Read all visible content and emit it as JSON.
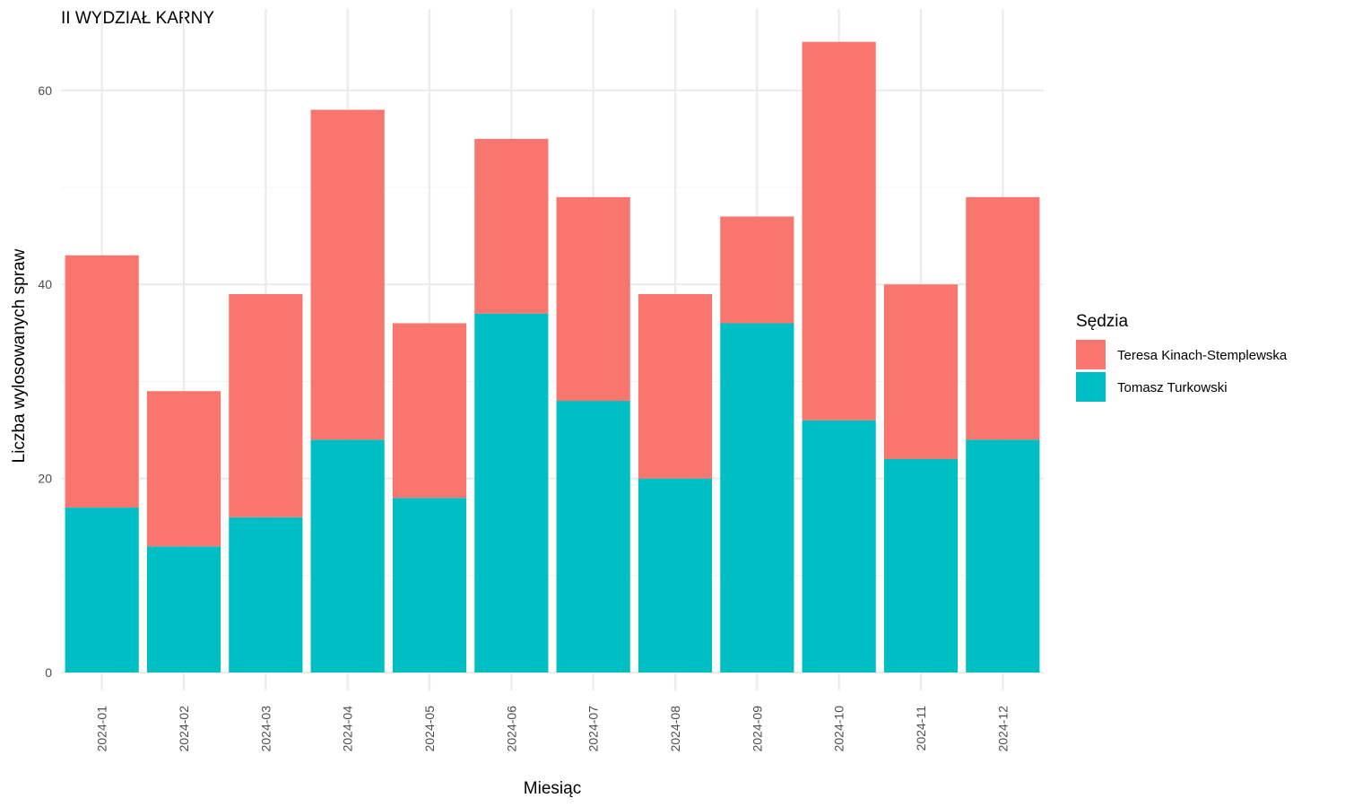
{
  "chart_data": {
    "type": "bar",
    "stacked": true,
    "title": "II WYDZIAŁ KARNY",
    "xlabel": "Miesiąc",
    "ylabel": "Liczba wylosowanych spraw",
    "categories": [
      "2024-01",
      "2024-02",
      "2024-03",
      "2024-04",
      "2024-05",
      "2024-06",
      "2024-07",
      "2024-08",
      "2024-09",
      "2024-10",
      "2024-11",
      "2024-12"
    ],
    "series": [
      {
        "name": "Tomasz Turkowski",
        "color": "#00BFC4",
        "values": [
          17,
          13,
          16,
          24,
          18,
          37,
          28,
          20,
          36,
          26,
          22,
          24
        ]
      },
      {
        "name": "Teresa Kinach-Stemplewska",
        "color": "#F8766D",
        "values": [
          26,
          16,
          23,
          34,
          18,
          18,
          21,
          19,
          11,
          39,
          18,
          25
        ]
      }
    ],
    "legend_order": [
      1,
      0
    ],
    "ylim": [
      0,
      68
    ],
    "yticks": [
      0,
      20,
      40,
      60
    ],
    "grid": true,
    "legend": {
      "title": "Sędzia",
      "position": "right"
    }
  }
}
